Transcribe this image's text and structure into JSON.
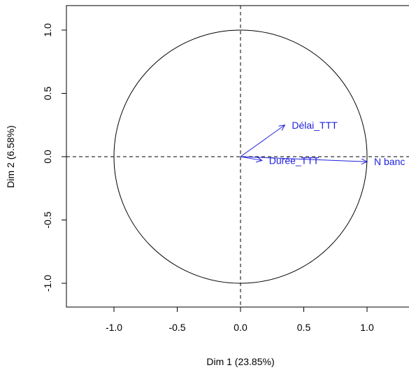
{
  "chart_data": {
    "type": "scatter",
    "subtype": "pca-correlation-circle",
    "title": "",
    "xlabel": "Dim 1 (23.85%)",
    "ylabel": "Dim 2 (6.58%)",
    "xlim": [
      -1.35,
      1.35
    ],
    "ylim": [
      -1.2,
      1.2
    ],
    "x_ticks": [
      "-1.0",
      "-0.5",
      "0.0",
      "0.5",
      "1.0"
    ],
    "y_ticks": [
      "-1.0",
      "-0.5",
      "0.0",
      "0.5",
      "1.0"
    ],
    "circle_radius": 1.0,
    "grid": false,
    "arrow_color": "#1f1fdd",
    "axis_color": "#000000",
    "variables": [
      {
        "label": "Délai_TTT",
        "x": 0.35,
        "y": 0.25
      },
      {
        "label": "Durée_TTT",
        "x": 0.17,
        "y": -0.03
      },
      {
        "label": "N banc",
        "x": 1.0,
        "y": -0.04
      }
    ]
  }
}
